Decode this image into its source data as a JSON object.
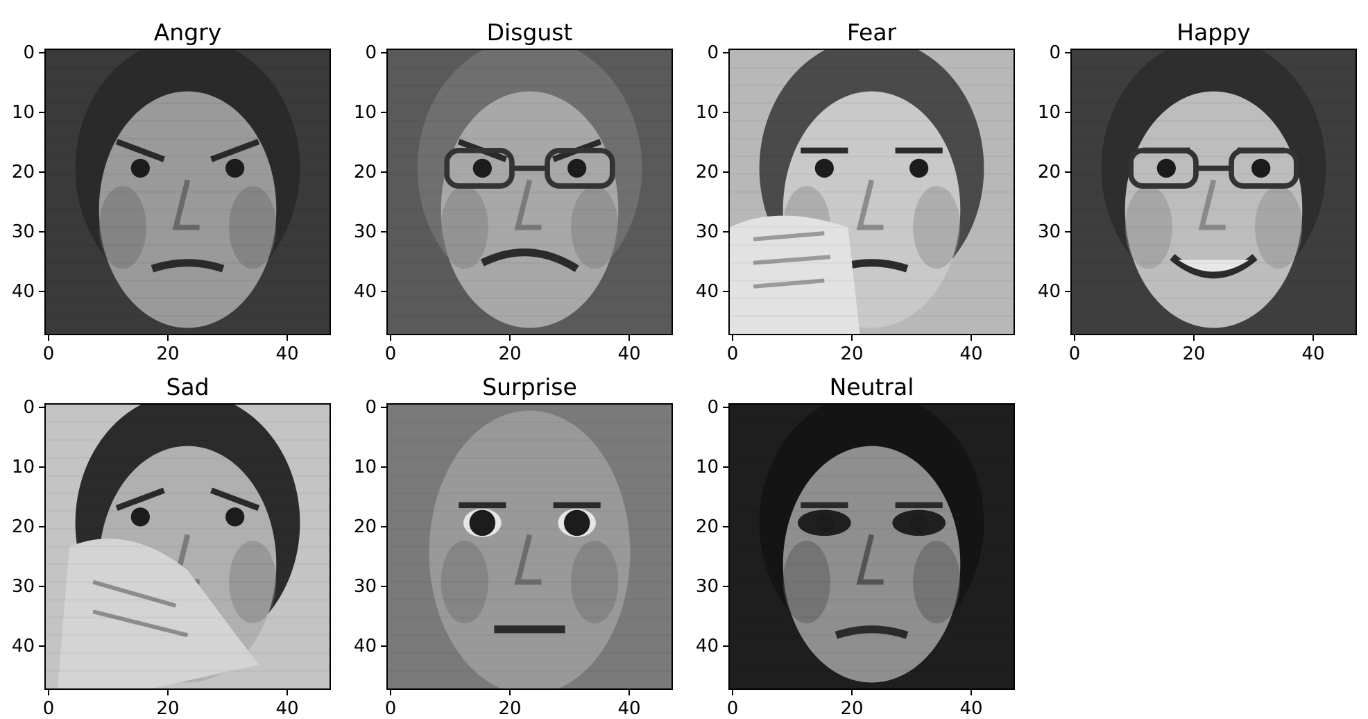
{
  "panels": [
    {
      "title": "Angry",
      "image": "grayscale face photo, man with furrowed brows glaring"
    },
    {
      "title": "Disgust",
      "image": "grayscale face photo, woman with glasses grimacing"
    },
    {
      "title": "Fear",
      "image": "grayscale face photo, woman with hand raised near face"
    },
    {
      "title": "Happy",
      "image": "grayscale face photo, smiling woman with glasses"
    },
    {
      "title": "Sad",
      "image": "grayscale face photo, boy with hand covering face"
    },
    {
      "title": "Surprise",
      "image": "grayscale face photo, bald man with wide eyes"
    },
    {
      "title": "Neutral",
      "image": "grayscale face photo, woman with dark eye makeup"
    }
  ],
  "x_ticks": [
    "0",
    "20",
    "40"
  ],
  "y_ticks": [
    "0",
    "10",
    "20",
    "30",
    "40"
  ],
  "colors": {
    "background": "#ffffff",
    "axis": "#000000"
  }
}
